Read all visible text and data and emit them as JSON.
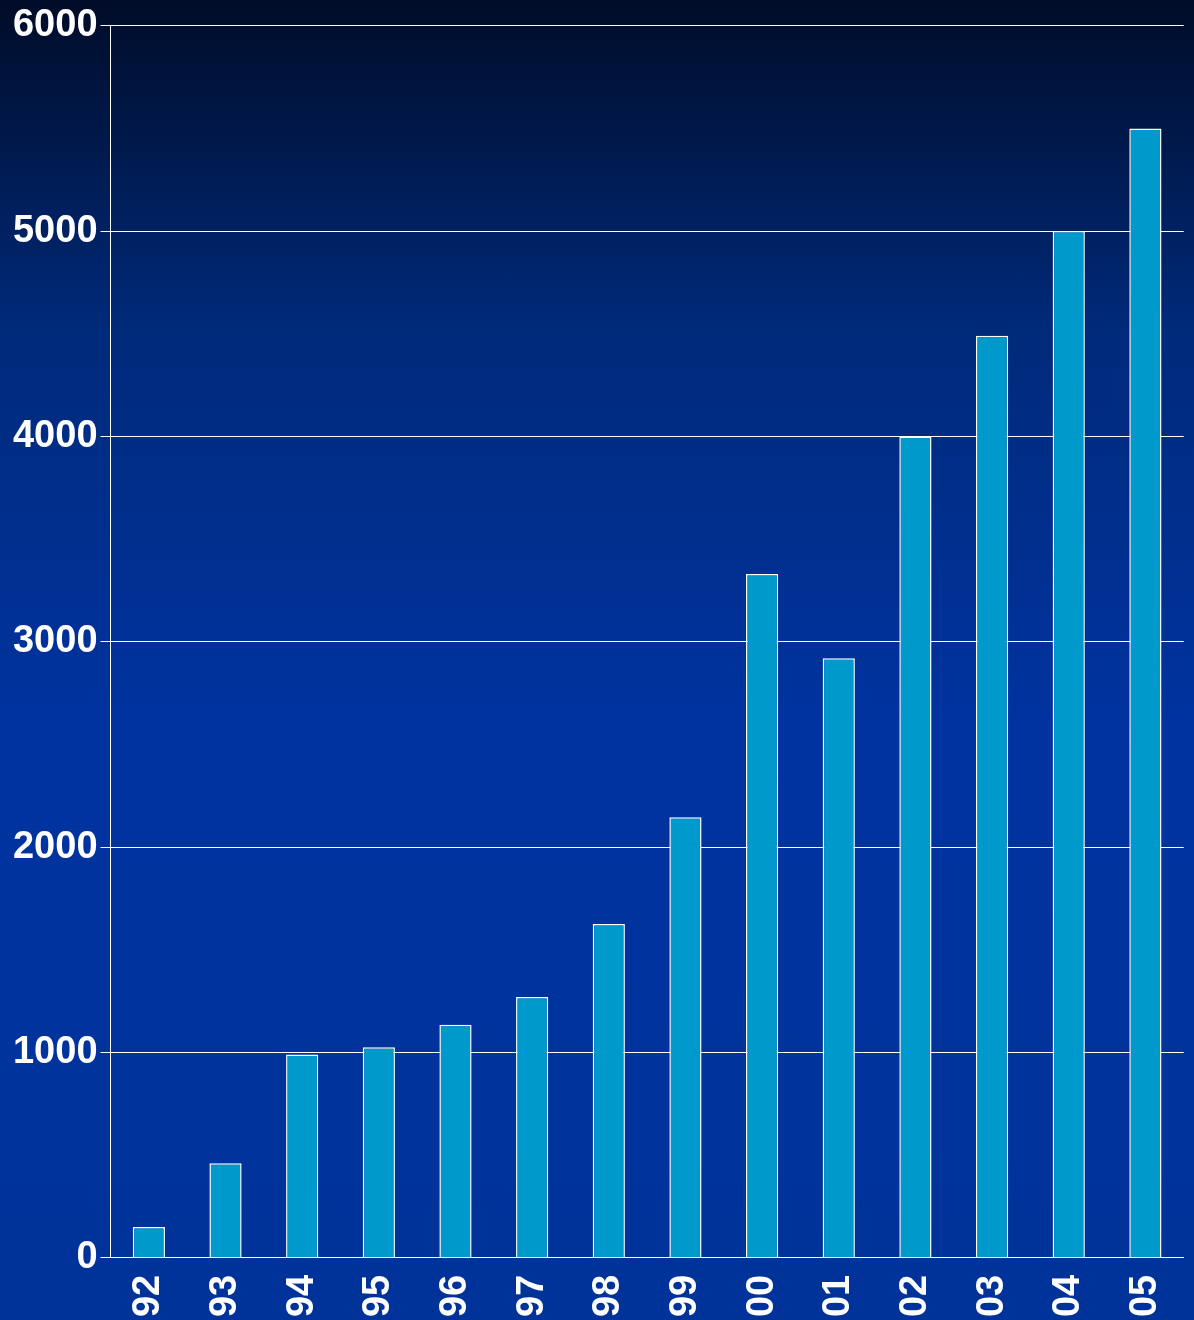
{
  "chart_data": {
    "type": "bar",
    "categories": [
      "92",
      "93",
      "94",
      "95",
      "96",
      "97",
      "98",
      "99",
      "00",
      "01",
      "02",
      "03",
      "04",
      "05"
    ],
    "values": [
      150,
      460,
      990,
      1025,
      1135,
      1270,
      1625,
      2145,
      3330,
      2920,
      4000,
      4490,
      5000,
      5500
    ],
    "color": "#0099cc",
    "ylim": [
      0,
      6000
    ],
    "yticks": [
      0,
      1000,
      2000,
      3000,
      4000,
      5000,
      6000
    ],
    "grid": "y",
    "legend": false
  }
}
